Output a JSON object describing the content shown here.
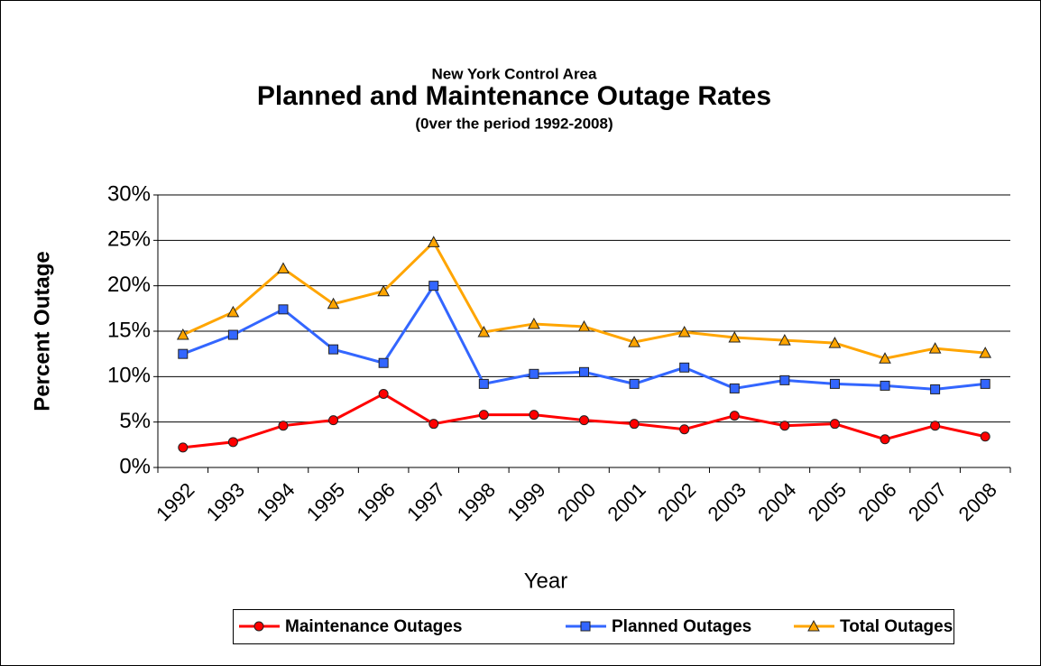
{
  "chart_data": {
    "type": "line",
    "supertitle": "New York Control Area",
    "title": "Planned and Maintenance Outage Rates",
    "subtitle": "(0ver the period 1992-2008)",
    "x_label": "Year",
    "y_label": "Percent Outage",
    "categories": [
      "1992",
      "1993",
      "1994",
      "1995",
      "1996",
      "1997",
      "1998",
      "1999",
      "2000",
      "2001",
      "2002",
      "2003",
      "2004",
      "2005",
      "2006",
      "2007",
      "2008"
    ],
    "series": [
      {
        "name": "Maintenance Outages",
        "color": "#ff0000",
        "marker": "circle",
        "values": [
          2.2,
          2.8,
          4.6,
          5.2,
          8.1,
          4.8,
          5.8,
          5.8,
          5.2,
          4.8,
          4.2,
          5.7,
          4.6,
          4.8,
          3.1,
          4.6,
          3.4
        ]
      },
      {
        "name": "Planned Outages",
        "color": "#3366ff",
        "marker": "square",
        "values": [
          12.5,
          14.6,
          17.4,
          13.0,
          11.5,
          20.0,
          9.2,
          10.3,
          10.5,
          9.2,
          11.0,
          8.7,
          9.6,
          9.2,
          9.0,
          8.6,
          9.2
        ]
      },
      {
        "name": "Total Outages",
        "color": "#ffa500",
        "marker": "triangle",
        "values": [
          14.6,
          17.1,
          21.9,
          18.0,
          19.4,
          24.8,
          14.9,
          15.8,
          15.5,
          13.8,
          14.9,
          14.3,
          14.0,
          13.7,
          12.0,
          13.1,
          12.6
        ]
      }
    ],
    "ylim": [
      0,
      30
    ],
    "yticks": [
      {
        "value": 0,
        "label": "0%"
      },
      {
        "value": 5,
        "label": "5%"
      },
      {
        "value": 10,
        "label": "10%"
      },
      {
        "value": 15,
        "label": "15%"
      },
      {
        "value": 20,
        "label": "20%"
      },
      {
        "value": 25,
        "label": "25%"
      },
      {
        "value": 30,
        "label": "30%"
      }
    ],
    "grid": true,
    "legend": "bottom"
  }
}
